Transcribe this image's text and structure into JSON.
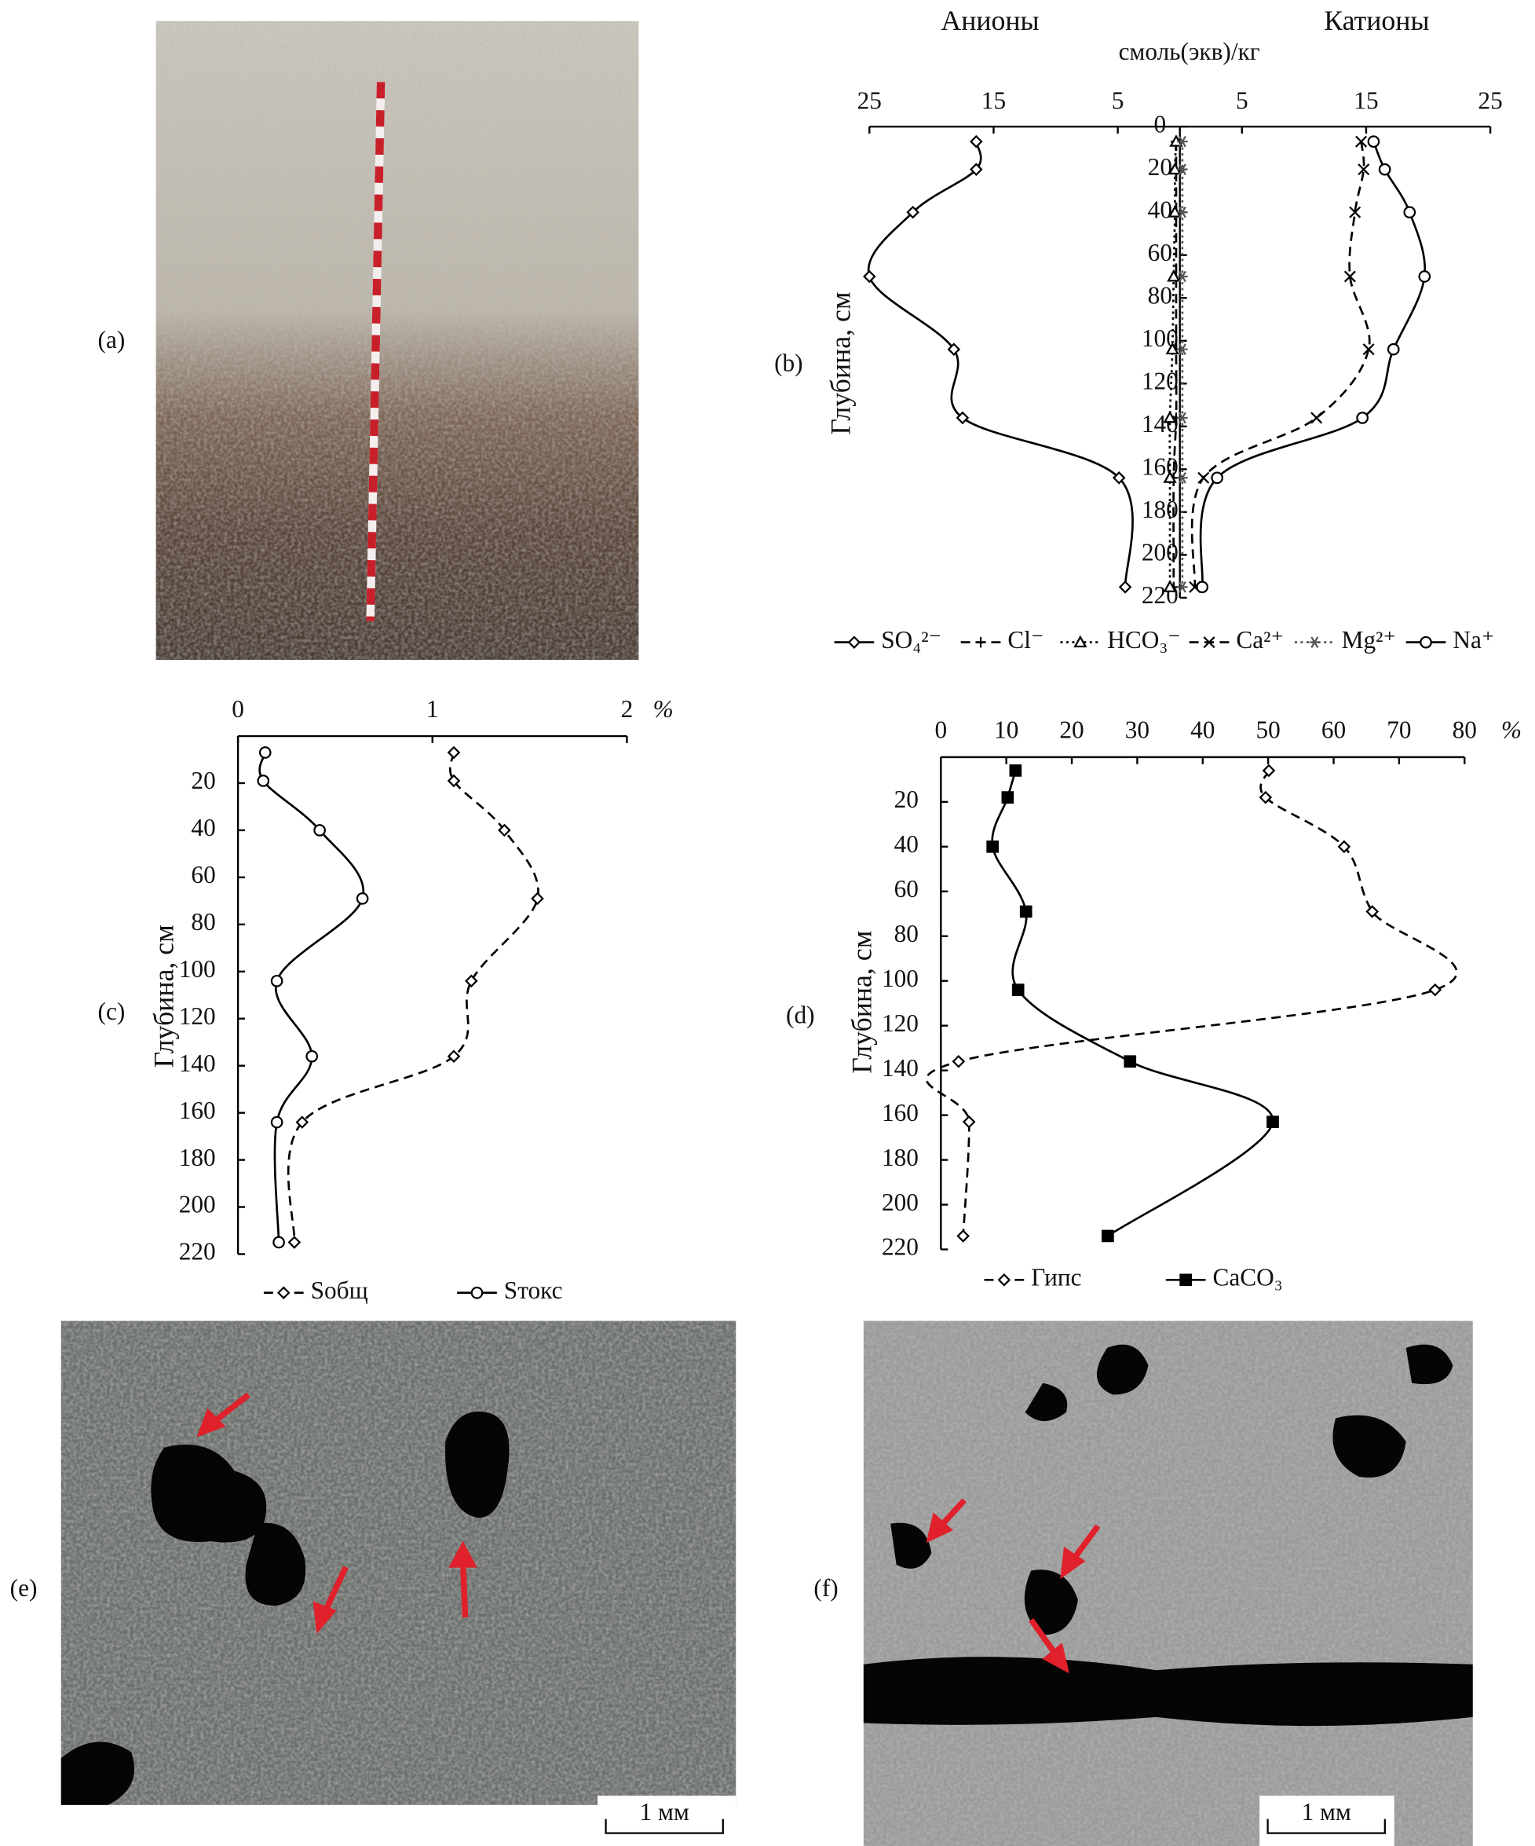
{
  "photos": [
    {
      "label": "(a)"
    },
    {
      "label": "(e)",
      "scale_bar": "1 мм"
    },
    {
      "label": "(f)",
      "scale_bar": "1 мм"
    }
  ],
  "chart_data": [
    {
      "type": "line",
      "panel_label": "(b)",
      "title_left": "Анионы",
      "title_right": "Катионы",
      "x_label": "смоль(экв)/кг",
      "y_label": "Глубина, см",
      "y": [
        7,
        20,
        40,
        70,
        104,
        136,
        164,
        215
      ],
      "xlim": [
        25,
        0
      ],
      "xticks": [
        25,
        15,
        5
      ],
      "x2lim": [
        0,
        25
      ],
      "x2ticks": [
        5,
        15,
        25
      ],
      "ylim": [
        0,
        220
      ],
      "yticks": [
        0,
        20,
        40,
        60,
        80,
        100,
        120,
        140,
        160,
        180,
        200,
        220
      ],
      "series": [
        {
          "name": "SO₄²⁻",
          "color": "#000000",
          "line": "solid",
          "marker": "diamond",
          "axis": "x",
          "values": [
            16.4,
            16.4,
            21.5,
            25,
            18.2,
            17.5,
            4.9,
            4.4
          ]
        },
        {
          "name": "Cl⁻",
          "color": "#000000",
          "line": "dashed",
          "marker": "plus",
          "axis": "x",
          "values": [
            0.3,
            0.3,
            0.3,
            0.3,
            0.3,
            0.3,
            0.5,
            0.5
          ]
        },
        {
          "name": "HCO₃⁻",
          "color": "#000000",
          "line": "dotted",
          "marker": "triangle",
          "axis": "x",
          "values": [
            0.3,
            0.4,
            0.4,
            0.5,
            0.6,
            0.8,
            0.8,
            0.8
          ]
        },
        {
          "name": "Ca²⁺",
          "color": "#000000",
          "line": "dashed",
          "marker": "cross",
          "axis": "x2",
          "values": [
            14.6,
            14.8,
            14.1,
            13.7,
            15.2,
            11.0,
            1.9,
            1.2
          ]
        },
        {
          "name": "Mg²⁺",
          "color": "#555555",
          "line": "dotted",
          "marker": "star",
          "axis": "x2",
          "values": [
            0.2,
            0.2,
            0.2,
            0.2,
            0.2,
            0.2,
            0.2,
            0.2
          ]
        },
        {
          "name": "Na⁺",
          "color": "#000000",
          "line": "solid",
          "marker": "circle",
          "axis": "x2",
          "values": [
            15.6,
            16.5,
            18.5,
            19.7,
            17.2,
            14.7,
            3.0,
            1.8
          ]
        }
      ]
    },
    {
      "type": "line",
      "panel_label": "(c)",
      "x_unit": "%",
      "y_label": "Глубина, см",
      "y": [
        7,
        19,
        40,
        69,
        104,
        136,
        164,
        215
      ],
      "xlim": [
        0,
        2
      ],
      "xticks": [
        0,
        1,
        2
      ],
      "ylim": [
        0,
        220
      ],
      "yticks": [
        20,
        40,
        60,
        80,
        100,
        120,
        140,
        160,
        180,
        200,
        220
      ],
      "series": [
        {
          "name": "Sобщ",
          "color": "#000000",
          "line": "dashed",
          "marker": "diamond",
          "axis": "x",
          "values": [
            1.11,
            1.11,
            1.37,
            1.54,
            1.2,
            1.11,
            0.33,
            0.29
          ]
        },
        {
          "name": "Sтокс",
          "color": "#000000",
          "line": "solid",
          "marker": "circle",
          "axis": "x",
          "values": [
            0.14,
            0.13,
            0.42,
            0.64,
            0.2,
            0.38,
            0.2,
            0.21
          ]
        }
      ]
    },
    {
      "type": "line",
      "panel_label": "(d)",
      "x_unit": "%",
      "y_label": "Глубина, см",
      "y": [
        6,
        18,
        40,
        69,
        104,
        136,
        163,
        214
      ],
      "xlim": [
        0,
        80
      ],
      "xticks": [
        0,
        10,
        20,
        30,
        40,
        50,
        60,
        70,
        80
      ],
      "ylim": [
        0,
        220
      ],
      "yticks": [
        20,
        40,
        60,
        80,
        100,
        120,
        140,
        160,
        180,
        200,
        220
      ],
      "series": [
        {
          "name": "Гипс",
          "color": "#000000",
          "line": "dashed",
          "marker": "diamond",
          "axis": "x",
          "values": [
            50.1,
            49.6,
            61.6,
            65.9,
            75.5,
            2.7,
            4.3,
            3.4
          ]
        },
        {
          "name": "CaCO₃",
          "color": "#000000",
          "line": "solid",
          "marker": "square",
          "axis": "x",
          "values": [
            11.4,
            10.2,
            7.9,
            13.0,
            11.8,
            28.9,
            50.7,
            25.5
          ]
        }
      ]
    }
  ]
}
